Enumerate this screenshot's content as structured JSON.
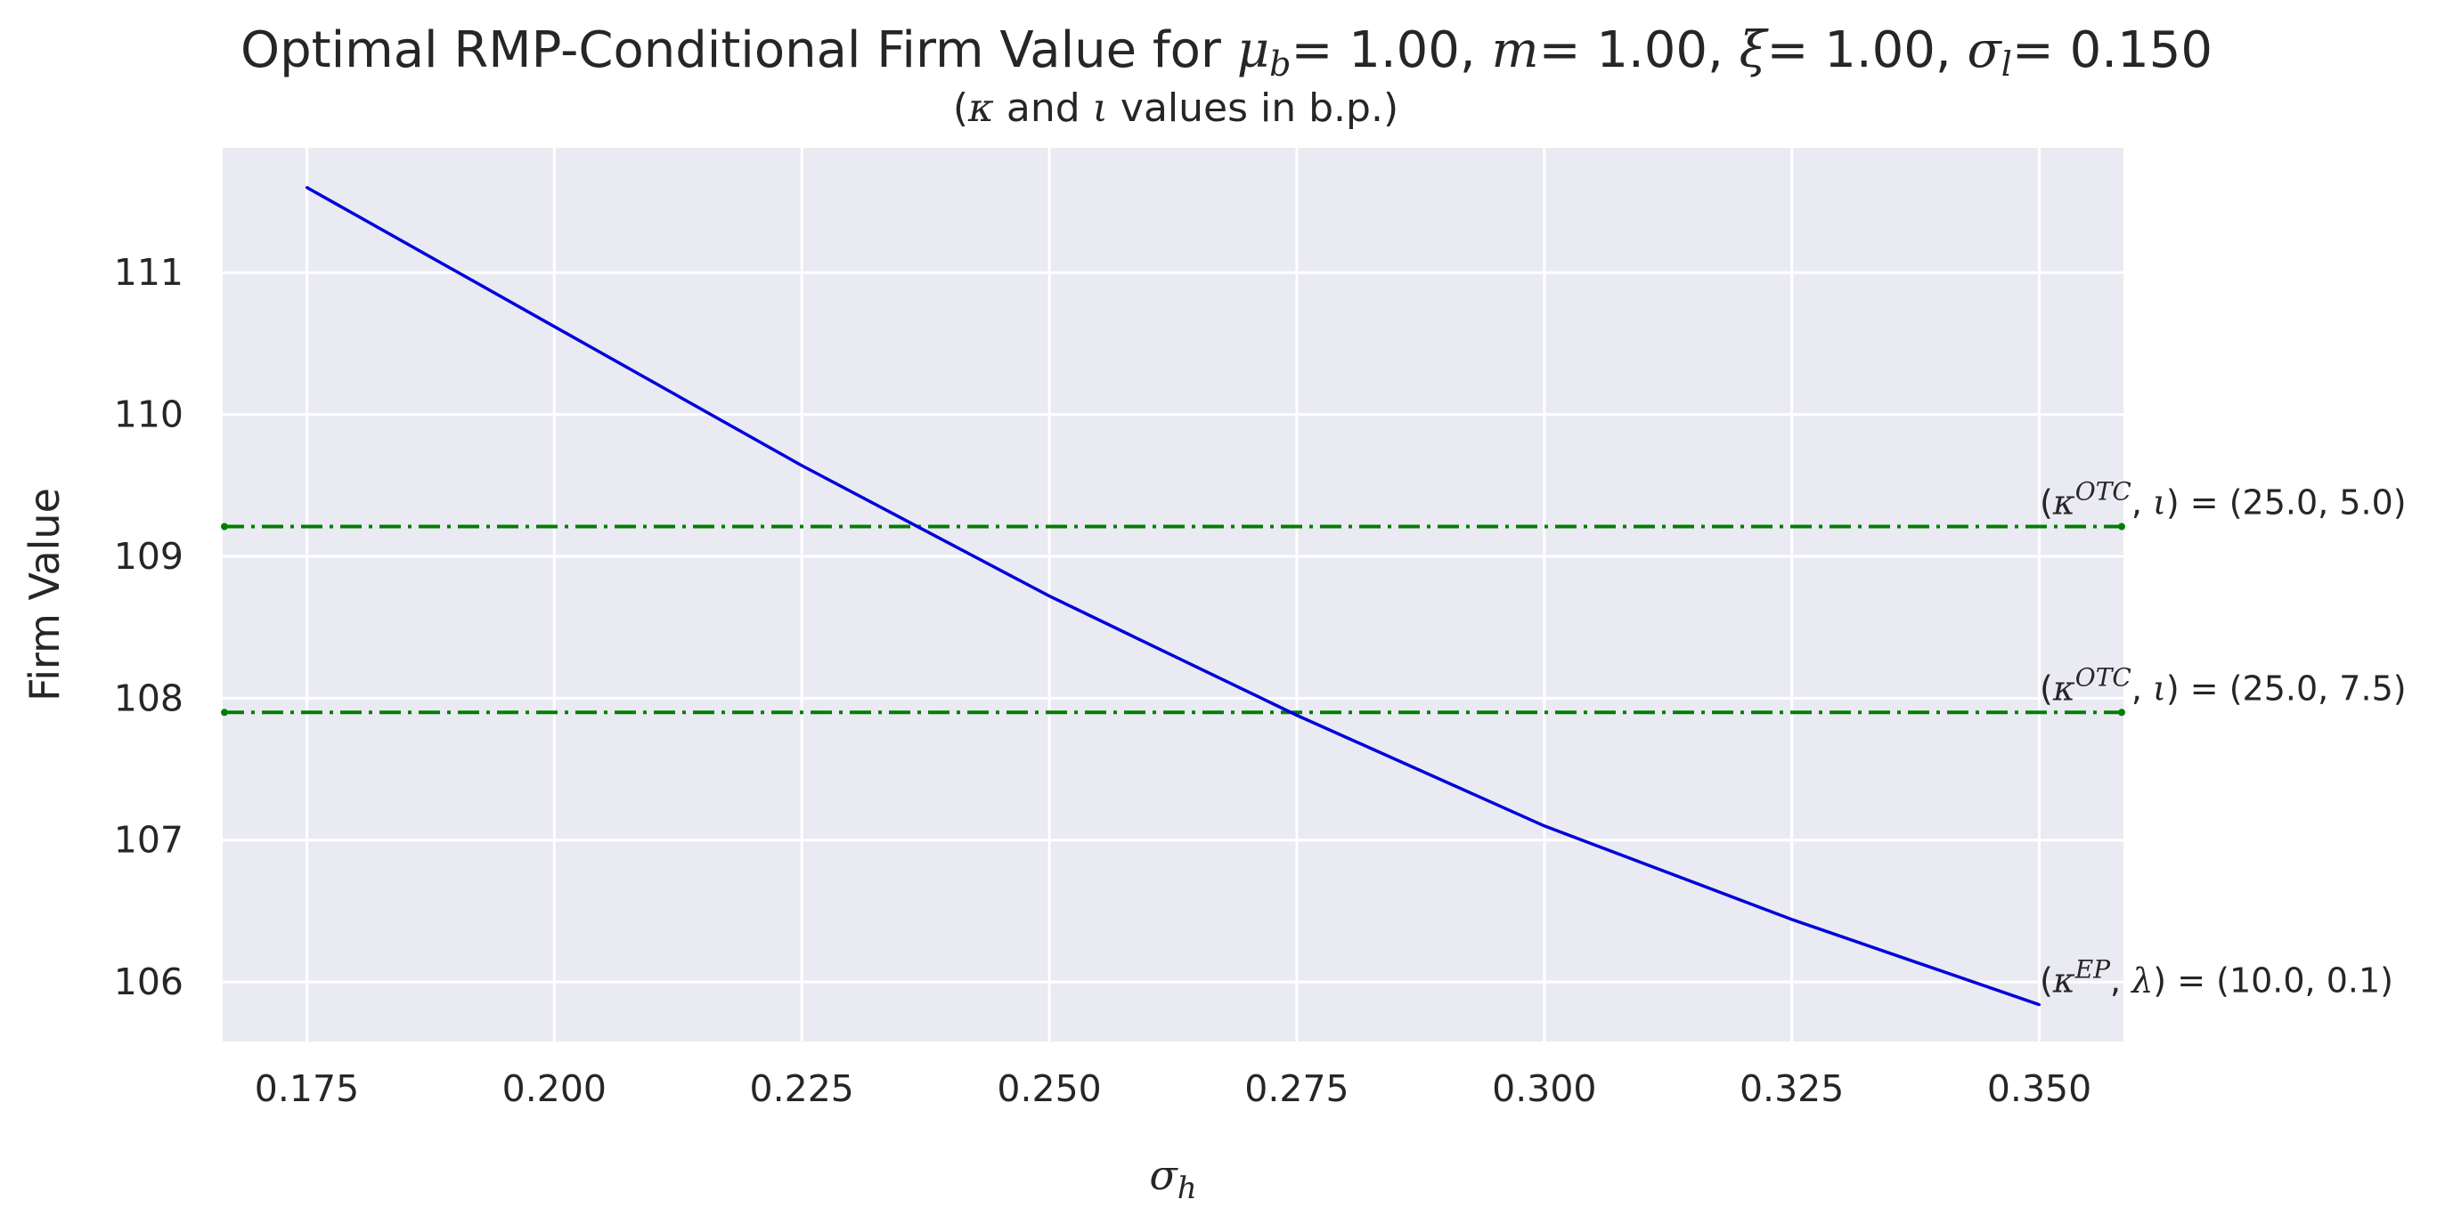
{
  "chart_data": {
    "type": "line",
    "title": {
      "prefix": "Optimal RMP-Conditional Firm Value for ",
      "params": [
        {
          "symbol": "μ",
          "sub": "b",
          "value": "1.00"
        },
        {
          "symbol": "m",
          "sub": "",
          "value": "1.00"
        },
        {
          "symbol": "ξ",
          "sub": "",
          "value": "1.00"
        },
        {
          "symbol": "σ",
          "sub": "l",
          "value": "0.150"
        }
      ]
    },
    "subtitle": {
      "open": "(",
      "k": "κ",
      "and": " and ",
      "i": "ι",
      "rest": " values in b.p.)"
    },
    "xlabel": {
      "symbol": "σ",
      "sub": "h"
    },
    "ylabel": "Firm Value",
    "xlim": [
      0.1665,
      0.3585
    ],
    "ylim": [
      105.58,
      111.88
    ],
    "xticks": [
      0.175,
      0.2,
      0.225,
      0.25,
      0.275,
      0.3,
      0.325,
      0.35
    ],
    "xtick_labels": [
      "0.175",
      "0.200",
      "0.225",
      "0.250",
      "0.275",
      "0.300",
      "0.325",
      "0.350"
    ],
    "yticks": [
      106,
      107,
      108,
      109,
      110,
      111
    ],
    "ytick_labels": [
      "106",
      "107",
      "108",
      "109",
      "110",
      "111"
    ],
    "grid": true,
    "series": [
      {
        "color": "#0000dd",
        "style": "solid",
        "x": [
          0.175,
          0.2,
          0.225,
          0.25,
          0.275,
          0.3,
          0.325,
          0.35
        ],
        "y": [
          111.6,
          110.62,
          109.64,
          108.72,
          107.88,
          107.1,
          106.44,
          105.84
        ],
        "annotation": {
          "open": "(",
          "k": "κ",
          "sup": "EP",
          "sep": ", ",
          "p": "λ",
          "close": ")",
          "eq": " = ",
          "value": " (10.0, 0.1)"
        }
      }
    ],
    "hlines": [
      {
        "y": 109.21,
        "color": "#007f00",
        "style": "dashdot",
        "annotation": {
          "open": "(",
          "k": "κ",
          "sup": "OTC",
          "sep": ", ",
          "p": "ι",
          "close": ")",
          "eq": " = ",
          "value": " (25.0, 5.0)"
        }
      },
      {
        "y": 107.9,
        "color": "#007f00",
        "style": "dashdot",
        "annotation": {
          "open": "(",
          "k": "κ",
          "sup": "OTC",
          "sep": ", ",
          "p": "ι",
          "close": ")",
          "eq": " = ",
          "value": " (25.0, 7.5)"
        }
      }
    ],
    "colors": {
      "plot_background": "#eaeaf2",
      "grid": "#ffffff",
      "line": "#0000dd",
      "hline": "#007f00"
    }
  }
}
